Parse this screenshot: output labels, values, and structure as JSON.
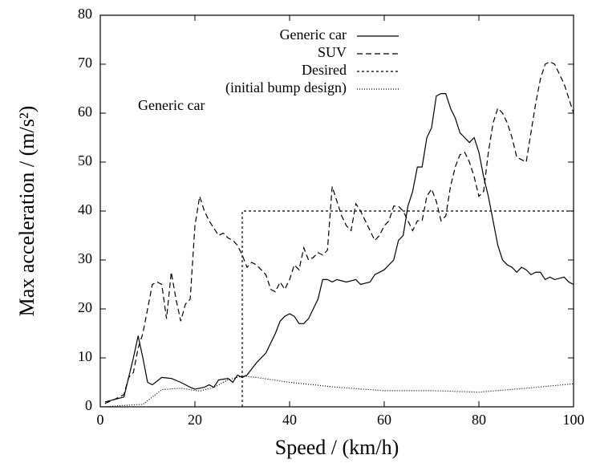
{
  "chart_data": {
    "type": "line",
    "xlabel": "Speed / (km/h)",
    "ylabel": "Max acceleration / (m/s²)",
    "xlim": [
      0,
      100
    ],
    "xticks": [
      0,
      20,
      40,
      60,
      80,
      100
    ],
    "ylim": [
      0,
      80
    ],
    "yticks": [
      0,
      10,
      20,
      30,
      40,
      50,
      60,
      70,
      80
    ],
    "series": [
      {
        "name": "Generic car",
        "color": "#000000",
        "dash": "none",
        "x": [
          1,
          3,
          5,
          7,
          8,
          9,
          10,
          11,
          13,
          15,
          17,
          19,
          20,
          22,
          23,
          24,
          25,
          27,
          28,
          29,
          30,
          31,
          33,
          35,
          37,
          38,
          39,
          40,
          41,
          42,
          43,
          44,
          45,
          46,
          47,
          48,
          49,
          50,
          52,
          54,
          55,
          57,
          58,
          60,
          62,
          63,
          64,
          65,
          66,
          67,
          68,
          69,
          70,
          71,
          72,
          73,
          74,
          75,
          76,
          77,
          78,
          79,
          80,
          81,
          82,
          83,
          84,
          85,
          86,
          87,
          88,
          89,
          90,
          91,
          92,
          93,
          94,
          95,
          96,
          98,
          99,
          100
        ],
        "values": [
          1,
          1.5,
          2,
          10,
          14.5,
          10,
          5,
          4.5,
          6,
          5.8,
          5,
          4,
          3.6,
          4,
          4.5,
          4,
          5.5,
          5.8,
          5,
          6.5,
          6,
          6.5,
          9,
          11,
          15,
          17.5,
          18.5,
          19,
          18.5,
          17,
          17,
          18,
          20,
          22,
          26,
          26,
          25.5,
          26,
          25.5,
          26,
          25,
          25.5,
          27,
          28,
          30,
          34,
          35,
          41,
          44,
          49,
          49,
          55,
          57,
          63.5,
          64,
          64,
          61,
          59,
          56,
          55,
          54,
          55,
          52,
          47,
          43,
          38,
          33,
          30,
          29,
          28.5,
          27.5,
          28.5,
          28,
          27,
          27.5,
          27.5,
          26,
          26.5,
          26,
          26.5,
          25.5,
          25
        ]
      },
      {
        "name": "SUV",
        "color": "#000000",
        "dash": "7 4",
        "x": [
          1,
          3,
          5,
          6,
          7,
          8,
          9,
          10,
          11,
          12,
          13,
          14,
          15,
          16,
          17,
          18,
          19,
          20,
          21,
          22,
          23,
          25,
          26,
          27,
          28,
          29,
          30,
          31,
          32,
          33,
          34,
          35,
          36,
          37,
          38,
          39,
          40,
          41,
          42,
          43,
          44,
          45,
          46,
          47,
          48,
          49,
          50,
          51,
          52,
          53,
          54,
          55,
          56,
          57,
          58,
          59,
          60,
          61,
          62,
          63,
          64,
          65,
          66,
          67,
          68,
          69,
          70,
          71,
          72,
          73,
          74,
          75,
          76,
          77,
          78,
          79,
          80,
          81,
          82,
          83,
          84,
          85,
          86,
          87,
          88,
          89,
          90,
          91,
          92,
          93,
          94,
          95,
          96,
          97,
          98,
          99,
          100
        ],
        "values": [
          0.7,
          1.5,
          2.5,
          6,
          7,
          12,
          15,
          20,
          25,
          25.5,
          25,
          18,
          27.5,
          22,
          17.5,
          21,
          22,
          37,
          43,
          40,
          38,
          35,
          35.5,
          34.5,
          34,
          33,
          31,
          28.5,
          29.5,
          29,
          28,
          27,
          24,
          23.5,
          25.5,
          24,
          26,
          29,
          28,
          32.5,
          30,
          30.5,
          31.5,
          31,
          32,
          45,
          42,
          39,
          37,
          36,
          41.5,
          40,
          38,
          36,
          34,
          35,
          37,
          38,
          41,
          41,
          40,
          38,
          36,
          38,
          38,
          43,
          44.5,
          42,
          38,
          39,
          45,
          49,
          51.5,
          52,
          50,
          47,
          43,
          44,
          52,
          58,
          61,
          60,
          58,
          55,
          51,
          50.5,
          50,
          56,
          62,
          67,
          70,
          70.5,
          70,
          68,
          66,
          63,
          60
        ]
      },
      {
        "name": "Desired",
        "color": "#000000",
        "dash": "3 3",
        "x": [
          30,
          30,
          100
        ],
        "values": [
          0,
          40,
          40
        ]
      },
      {
        "name": "(initial bump design)",
        "name_line2": "Generic car",
        "color": "#000000",
        "dash": "1 2",
        "x": [
          1,
          5,
          9,
          11,
          13,
          17,
          19,
          21,
          24,
          27,
          30,
          33,
          40,
          50,
          60,
          70,
          80,
          90,
          100
        ],
        "values": [
          0,
          0.3,
          0.5,
          2,
          3.5,
          3.8,
          3.5,
          3.2,
          4,
          5.5,
          6.3,
          6,
          5,
          4,
          3.3,
          3.3,
          3,
          3.8,
          4.7
        ]
      }
    ]
  }
}
